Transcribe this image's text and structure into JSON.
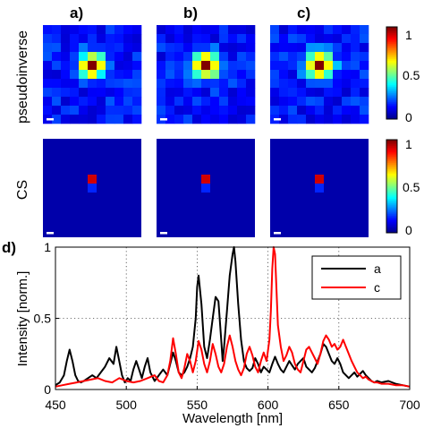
{
  "figure": {
    "panel_labels": [
      "a)",
      "b)",
      "c)",
      "d)"
    ],
    "row_labels": [
      "pseudoinverse",
      "CS"
    ]
  },
  "colorbars": [
    {
      "name": "pseudoinverse",
      "ticks": [
        "1",
        "0.5",
        "0"
      ]
    },
    {
      "name": "CS",
      "ticks": [
        "1",
        "0.5",
        "0"
      ]
    }
  ],
  "colormap": [
    "#00008f",
    "#0000ff",
    "#0080ff",
    "#00ffff",
    "#80ff80",
    "#ffff00",
    "#ff8000",
    "#ff0000",
    "#800000"
  ],
  "heatmaps": {
    "grid_size": 11,
    "pseudoinverse": [
      {
        "label": "a)",
        "peak": [
          4,
          5
        ],
        "spread": 0.9
      },
      {
        "label": "b)",
        "peak": [
          4,
          5
        ],
        "spread": 0.95
      },
      {
        "label": "c)",
        "peak": [
          4,
          5
        ],
        "spread": 1.0
      }
    ],
    "cs": [
      {
        "label": "a)",
        "peak": [
          4,
          5
        ],
        "secondary": [
          5,
          5
        ]
      },
      {
        "label": "b)",
        "peak": [
          4,
          5
        ],
        "secondary": [
          5,
          5
        ]
      },
      {
        "label": "c)",
        "peak": [
          4,
          5
        ],
        "secondary": [
          5,
          5
        ]
      }
    ]
  },
  "chart_data": {
    "type": "line",
    "xlabel": "Wavelength [nm]",
    "ylabel": "Intensity [norm.]",
    "xlim": [
      450,
      700
    ],
    "ylim": [
      0,
      1
    ],
    "xticks": [
      "450",
      "500",
      "550",
      "600",
      "650",
      "700"
    ],
    "yticks": [
      "0",
      "0.5",
      "1"
    ],
    "grid": "dotted",
    "legend_position": "top-right",
    "series": [
      {
        "name": "a",
        "color": "#000000",
        "x": [
          450,
          453,
          456,
          458,
          460,
          462,
          464,
          466,
          468,
          470,
          473,
          476,
          479,
          482,
          485,
          488,
          491,
          493,
          495,
          497,
          499,
          501,
          503,
          505,
          507,
          509,
          511,
          513,
          515,
          517,
          520,
          523,
          526,
          529,
          531,
          533,
          535,
          537,
          539,
          541,
          543,
          545,
          547,
          549,
          550,
          551,
          553,
          555,
          557,
          559,
          561,
          563,
          565,
          567,
          568,
          569,
          571,
          573,
          575,
          576,
          577,
          579,
          581,
          583,
          585,
          587,
          589,
          591,
          593,
          595,
          597,
          599,
          601,
          603,
          605,
          607,
          609,
          611,
          613,
          615,
          617,
          619,
          621,
          623,
          625,
          627,
          629,
          631,
          633,
          635,
          637,
          639,
          641,
          643,
          645,
          647,
          649,
          651,
          653,
          655,
          657,
          659,
          661,
          663,
          665,
          667,
          669,
          671,
          673,
          675,
          677,
          680,
          685,
          690,
          695,
          700
        ],
        "y": [
          0.03,
          0.05,
          0.1,
          0.2,
          0.28,
          0.2,
          0.1,
          0.06,
          0.05,
          0.06,
          0.08,
          0.1,
          0.08,
          0.12,
          0.16,
          0.22,
          0.18,
          0.3,
          0.2,
          0.1,
          0.05,
          0.08,
          0.06,
          0.14,
          0.2,
          0.14,
          0.08,
          0.16,
          0.22,
          0.12,
          0.06,
          0.1,
          0.14,
          0.1,
          0.18,
          0.26,
          0.2,
          0.12,
          0.1,
          0.12,
          0.16,
          0.22,
          0.3,
          0.5,
          0.72,
          0.8,
          0.6,
          0.3,
          0.22,
          0.35,
          0.5,
          0.65,
          0.62,
          0.35,
          0.2,
          0.3,
          0.55,
          0.8,
          0.95,
          1.0,
          0.9,
          0.6,
          0.35,
          0.2,
          0.15,
          0.13,
          0.15,
          0.22,
          0.18,
          0.12,
          0.16,
          0.14,
          0.12,
          0.18,
          0.23,
          0.18,
          0.14,
          0.12,
          0.16,
          0.2,
          0.17,
          0.14,
          0.18,
          0.2,
          0.22,
          0.16,
          0.14,
          0.12,
          0.15,
          0.2,
          0.25,
          0.32,
          0.3,
          0.25,
          0.2,
          0.18,
          0.22,
          0.18,
          0.12,
          0.1,
          0.08,
          0.1,
          0.12,
          0.09,
          0.11,
          0.13,
          0.1,
          0.08,
          0.06,
          0.05,
          0.06,
          0.05,
          0.06,
          0.04,
          0.03,
          0.02
        ]
      },
      {
        "name": "c",
        "color": "#ff0000",
        "x": [
          450,
          455,
          460,
          465,
          470,
          475,
          480,
          485,
          490,
          495,
          500,
          505,
          510,
          515,
          520,
          523,
          526,
          529,
          531,
          533,
          535,
          537,
          539,
          541,
          543,
          545,
          547,
          549,
          551,
          553,
          555,
          557,
          559,
          561,
          563,
          565,
          567,
          569,
          571,
          573,
          575,
          577,
          579,
          581,
          583,
          585,
          587,
          589,
          591,
          593,
          595,
          597,
          599,
          601,
          602,
          603,
          604,
          605,
          606,
          607,
          609,
          611,
          613,
          615,
          617,
          619,
          621,
          623,
          625,
          627,
          629,
          631,
          633,
          635,
          637,
          639,
          641,
          643,
          645,
          647,
          649,
          651,
          653,
          655,
          657,
          659,
          661,
          663,
          665,
          667,
          669,
          671,
          673,
          675,
          677,
          680,
          685,
          690,
          695,
          700
        ],
        "y": [
          0.02,
          0.03,
          0.04,
          0.05,
          0.06,
          0.07,
          0.08,
          0.06,
          0.05,
          0.08,
          0.06,
          0.05,
          0.06,
          0.08,
          0.1,
          0.06,
          0.05,
          0.1,
          0.2,
          0.36,
          0.25,
          0.12,
          0.08,
          0.15,
          0.25,
          0.2,
          0.12,
          0.2,
          0.34,
          0.28,
          0.18,
          0.12,
          0.2,
          0.32,
          0.25,
          0.16,
          0.12,
          0.18,
          0.3,
          0.38,
          0.3,
          0.2,
          0.14,
          0.1,
          0.15,
          0.25,
          0.3,
          0.24,
          0.16,
          0.12,
          0.2,
          0.26,
          0.2,
          0.35,
          0.55,
          0.85,
          1.0,
          0.95,
          0.7,
          0.45,
          0.3,
          0.2,
          0.24,
          0.3,
          0.26,
          0.18,
          0.14,
          0.12,
          0.2,
          0.28,
          0.3,
          0.26,
          0.22,
          0.18,
          0.25,
          0.34,
          0.38,
          0.35,
          0.3,
          0.32,
          0.28,
          0.3,
          0.35,
          0.3,
          0.25,
          0.2,
          0.16,
          0.12,
          0.1,
          0.08,
          0.09,
          0.07,
          0.06,
          0.05,
          0.05,
          0.04,
          0.04,
          0.03,
          0.03,
          0.02
        ]
      }
    ]
  }
}
